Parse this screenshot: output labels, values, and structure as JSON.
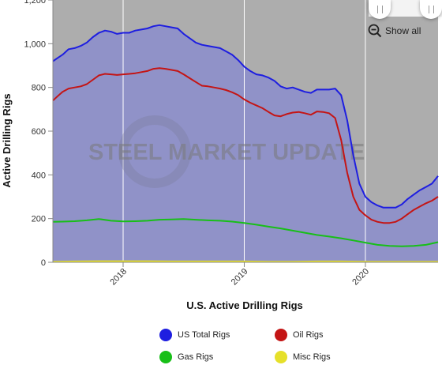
{
  "chart_data": {
    "type": "area",
    "title": "",
    "xlabel": "U.S. Active Drilling Rigs",
    "ylabel": "Active Drilling Rigs",
    "ylim": [
      0,
      1200
    ],
    "yticks": [
      0,
      200,
      400,
      600,
      800,
      1000,
      1200
    ],
    "ytick_labels": [
      "0",
      "200",
      "400",
      "600",
      "800",
      "1,000",
      "1,200"
    ],
    "xlim": [
      2017.42,
      2020.6
    ],
    "xticks": [
      2018.0,
      2019.0,
      2020.0
    ],
    "xtick_labels": [
      "2018",
      "2019",
      "2020"
    ],
    "grid": "vertical",
    "legend_position": "bottom",
    "series": [
      {
        "name": "US Total Rigs",
        "color": "#1e1ee0",
        "x": [
          2017.42,
          2017.46,
          2017.5,
          2017.55,
          2017.6,
          2017.65,
          2017.7,
          2017.75,
          2017.8,
          2017.85,
          2017.9,
          2017.95,
          2018.0,
          2018.05,
          2018.1,
          2018.15,
          2018.2,
          2018.25,
          2018.3,
          2018.35,
          2018.4,
          2018.45,
          2018.5,
          2018.55,
          2018.6,
          2018.65,
          2018.7,
          2018.75,
          2018.8,
          2018.85,
          2018.9,
          2018.95,
          2019.0,
          2019.05,
          2019.1,
          2019.15,
          2019.2,
          2019.25,
          2019.3,
          2019.35,
          2019.4,
          2019.45,
          2019.5,
          2019.55,
          2019.6,
          2019.65,
          2019.7,
          2019.75,
          2019.8,
          2019.85,
          2019.9,
          2019.95,
          2020.0,
          2020.05,
          2020.1,
          2020.15,
          2020.2,
          2020.25,
          2020.3,
          2020.35,
          2020.4,
          2020.45,
          2020.5,
          2020.55,
          2020.6
        ],
        "values": [
          920,
          935,
          950,
          975,
          980,
          990,
          1005,
          1030,
          1050,
          1060,
          1055,
          1045,
          1050,
          1050,
          1060,
          1065,
          1070,
          1080,
          1085,
          1080,
          1075,
          1070,
          1045,
          1025,
          1005,
          995,
          990,
          985,
          980,
          965,
          950,
          925,
          895,
          875,
          860,
          855,
          845,
          830,
          805,
          795,
          800,
          790,
          780,
          775,
          790,
          790,
          790,
          795,
          765,
          650,
          490,
          360,
          300,
          275,
          260,
          250,
          250,
          250,
          265,
          290,
          310,
          330,
          345,
          360,
          395
        ]
      },
      {
        "name": "Oil Rigs",
        "color": "#c41515",
        "x": [
          2017.42,
          2017.46,
          2017.5,
          2017.55,
          2017.6,
          2017.65,
          2017.7,
          2017.75,
          2017.8,
          2017.85,
          2017.9,
          2017.95,
          2018.0,
          2018.05,
          2018.1,
          2018.15,
          2018.2,
          2018.25,
          2018.3,
          2018.35,
          2018.4,
          2018.45,
          2018.5,
          2018.55,
          2018.6,
          2018.65,
          2018.7,
          2018.75,
          2018.8,
          2018.85,
          2018.9,
          2018.95,
          2019.0,
          2019.05,
          2019.1,
          2019.15,
          2019.2,
          2019.25,
          2019.3,
          2019.35,
          2019.4,
          2019.45,
          2019.5,
          2019.55,
          2019.6,
          2019.65,
          2019.7,
          2019.75,
          2019.8,
          2019.85,
          2019.9,
          2019.95,
          2020.0,
          2020.05,
          2020.1,
          2020.15,
          2020.2,
          2020.25,
          2020.3,
          2020.35,
          2020.4,
          2020.45,
          2020.5,
          2020.55,
          2020.6
        ],
        "values": [
          740,
          760,
          780,
          795,
          800,
          805,
          815,
          835,
          855,
          862,
          860,
          857,
          860,
          862,
          865,
          870,
          875,
          885,
          888,
          885,
          880,
          875,
          860,
          842,
          825,
          808,
          805,
          800,
          795,
          788,
          778,
          765,
          745,
          730,
          718,
          705,
          688,
          672,
          668,
          678,
          685,
          688,
          682,
          675,
          690,
          688,
          682,
          660,
          560,
          410,
          300,
          240,
          215,
          195,
          185,
          180,
          180,
          185,
          200,
          220,
          240,
          255,
          270,
          282,
          300
        ]
      },
      {
        "name": "Gas Rigs",
        "color": "#18bf18",
        "x": [
          2017.42,
          2017.5,
          2017.6,
          2017.7,
          2017.8,
          2017.9,
          2018.0,
          2018.1,
          2018.2,
          2018.3,
          2018.4,
          2018.5,
          2018.6,
          2018.7,
          2018.8,
          2018.9,
          2019.0,
          2019.1,
          2019.2,
          2019.3,
          2019.4,
          2019.5,
          2019.6,
          2019.7,
          2019.8,
          2019.9,
          2020.0,
          2020.1,
          2020.2,
          2020.3,
          2020.4,
          2020.5,
          2020.6
        ],
        "values": [
          185,
          186,
          188,
          192,
          198,
          190,
          187,
          188,
          190,
          195,
          196,
          198,
          195,
          192,
          190,
          186,
          180,
          172,
          163,
          155,
          145,
          135,
          125,
          118,
          110,
          100,
          90,
          80,
          75,
          73,
          75,
          80,
          92
        ]
      },
      {
        "name": "Misc Rigs",
        "color": "#e6e02a",
        "x": [
          2017.42,
          2017.6,
          2017.8,
          2018.0,
          2018.2,
          2018.4,
          2018.6,
          2018.8,
          2019.0,
          2019.2,
          2019.4,
          2019.6,
          2019.8,
          2020.0,
          2020.2,
          2020.4,
          2020.6
        ],
        "values": [
          3,
          4,
          5,
          5,
          5,
          4,
          4,
          4,
          4,
          3,
          3,
          4,
          4,
          3,
          3,
          3,
          3
        ]
      }
    ],
    "watermark": "STEEL MARKET UPDATE"
  },
  "controls": {
    "show_all_label": "Show all",
    "zoom_out_icon": "zoom-out-icon",
    "scroll_handle_icon": "grip-icon"
  },
  "colors": {
    "plot_bg_upper": "#adadad",
    "area_fill": "#9092c8",
    "gridline": "#ffffff"
  }
}
